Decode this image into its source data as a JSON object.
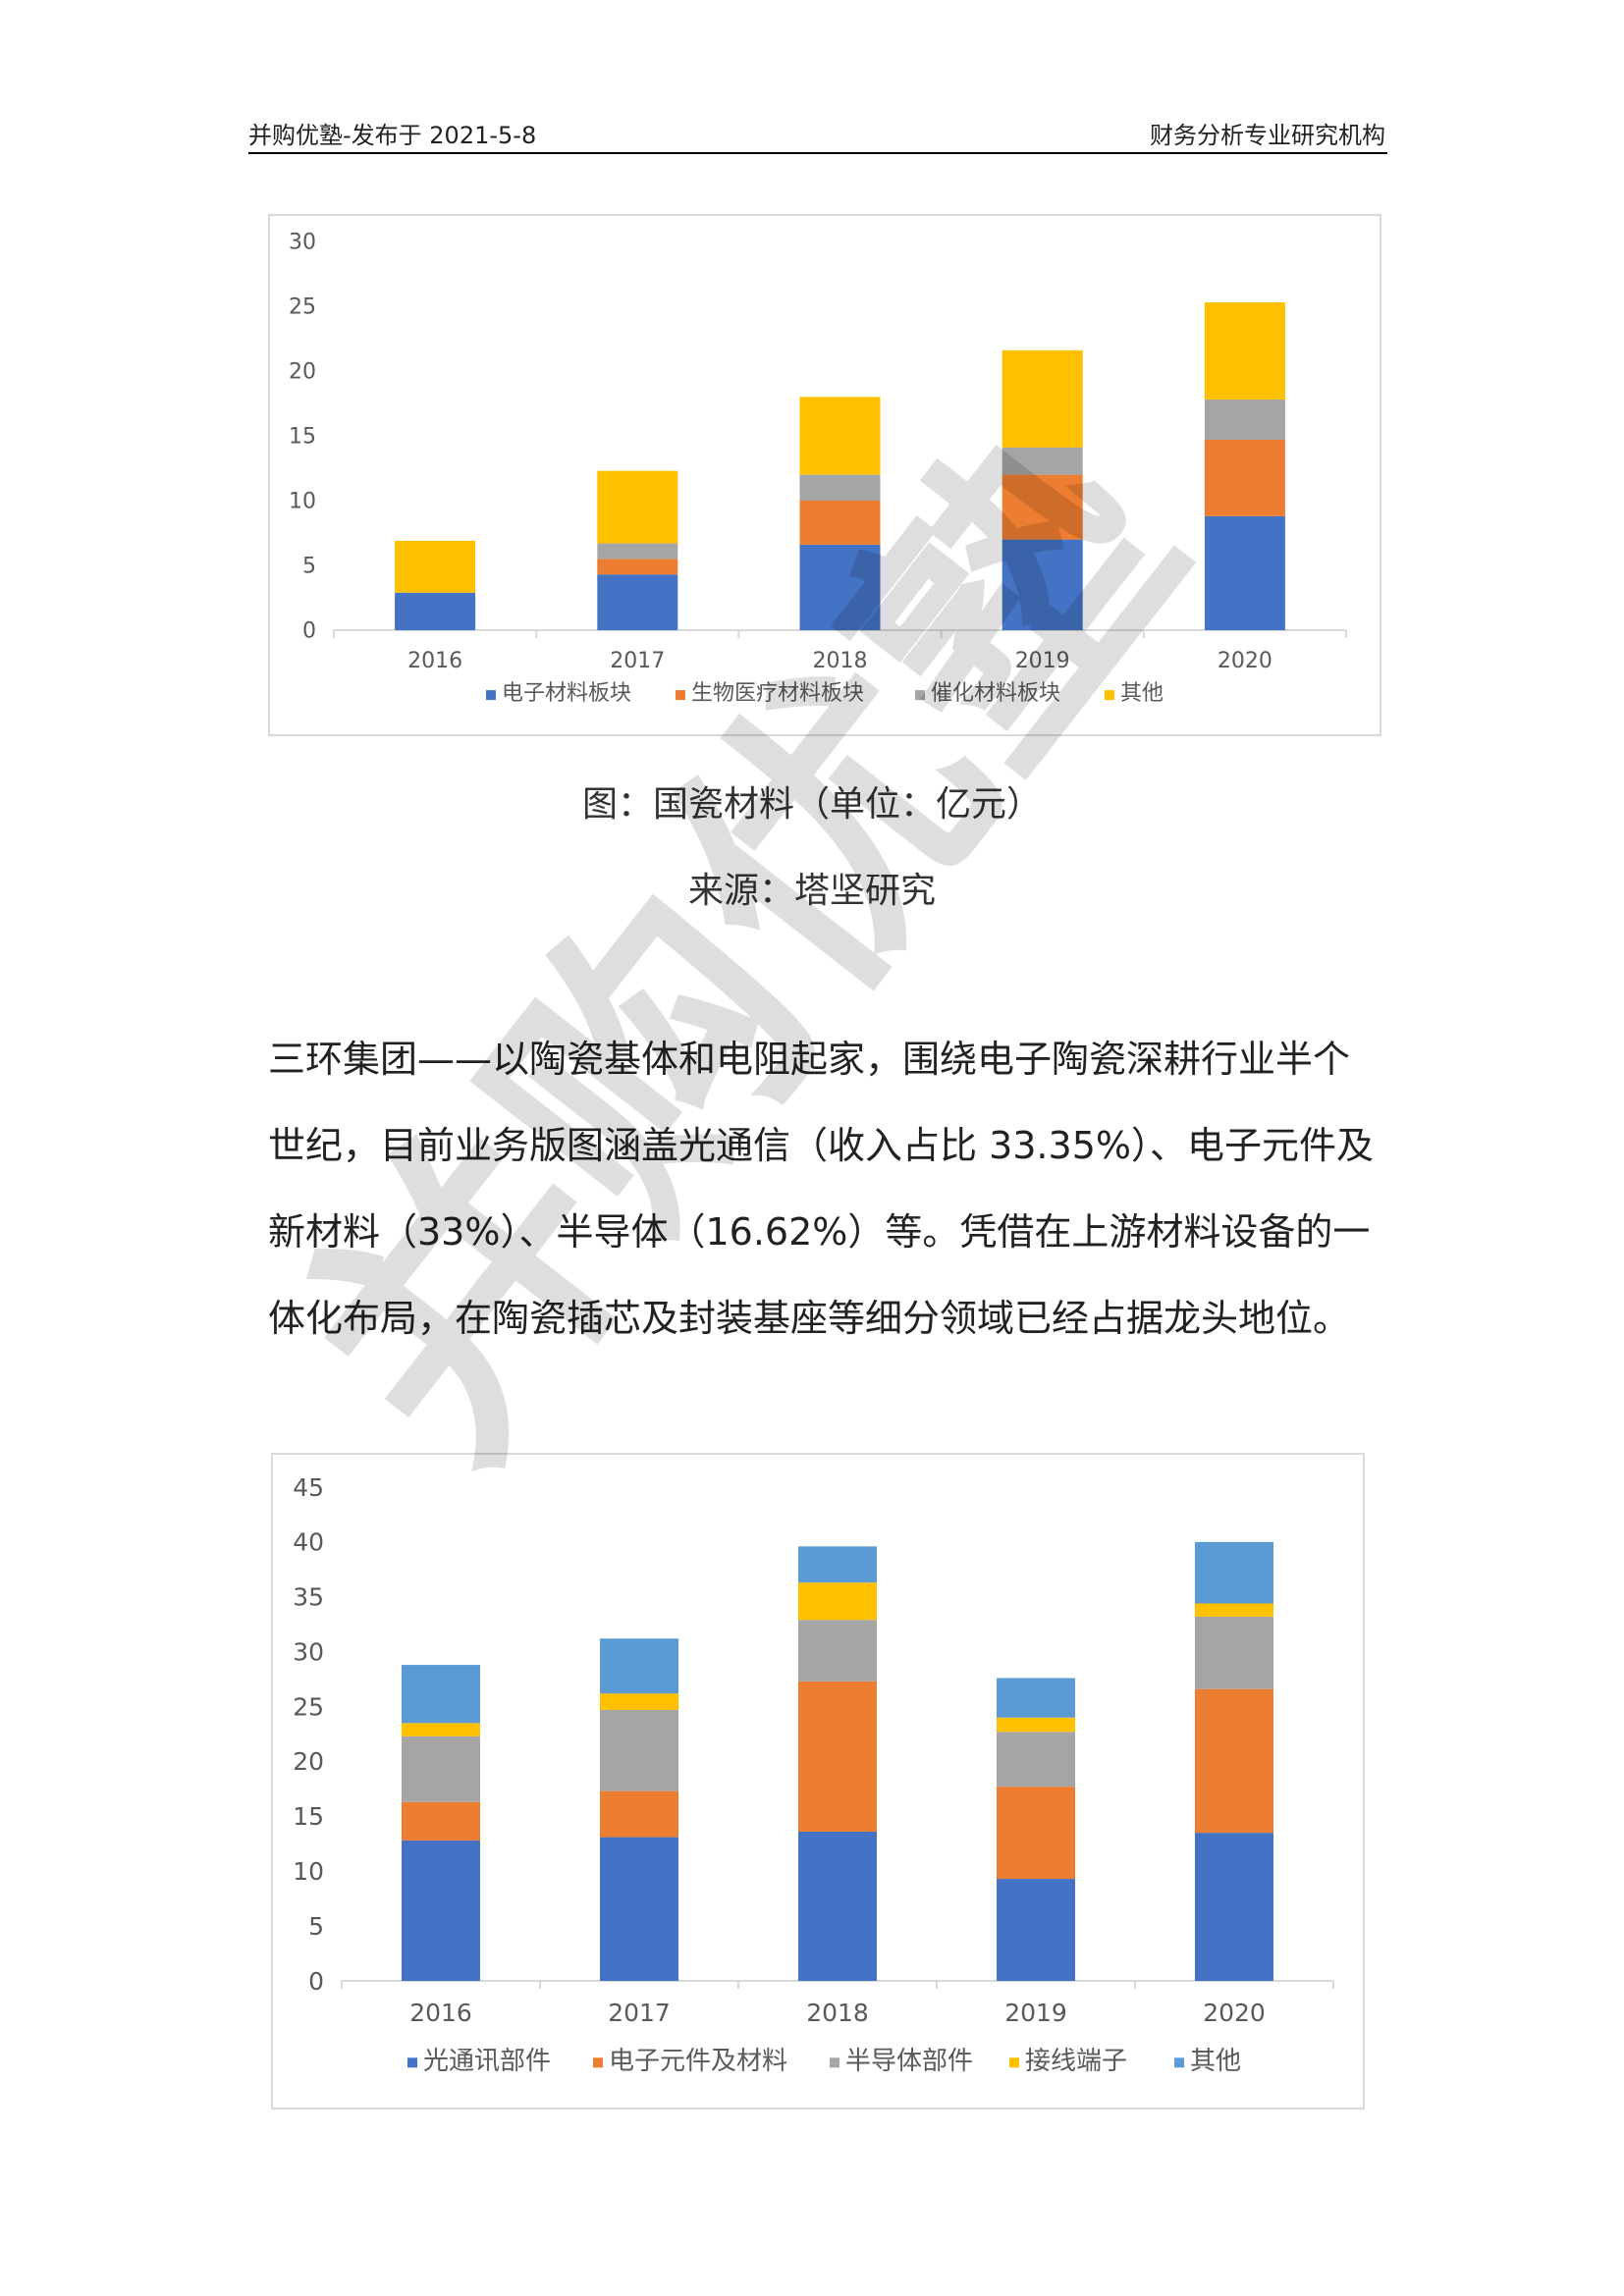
{
  "header": {
    "left": "并购优塾-发布于 2021-5-8",
    "right": "财务分析专业研究机构"
  },
  "figure1": {
    "caption": "图：国瓷材料（单位：亿元）",
    "source": "来源：塔坚研究"
  },
  "paragraph": {
    "text": "三环集团——以陶瓷基体和电阻起家，围绕电子陶瓷深耕行业半个世纪，目前业务版图涵盖光通信（收入占比 33.35%）、电子元件及新材料（33%）、半导体（16.62%）等。凭借在上游材料设备的一体化布局，在陶瓷插芯及封装基座等细分领域已经占据龙头地位。"
  },
  "watermark": {
    "text": "并购优塾"
  },
  "chart_data": [
    {
      "type": "bar",
      "stacked": true,
      "categories": [
        "2016",
        "2017",
        "2018",
        "2019",
        "2020"
      ],
      "series": [
        {
          "name": "电子材料板块",
          "color": "#4472c4",
          "values": [
            2.9,
            4.3,
            6.6,
            7.0,
            8.8
          ]
        },
        {
          "name": "生物医疗材料板块",
          "color": "#ed7d31",
          "values": [
            0,
            1.2,
            3.4,
            5.0,
            5.9
          ]
        },
        {
          "name": "催化材料板块",
          "color": "#a5a5a5",
          "values": [
            0,
            1.2,
            2.0,
            2.1,
            3.1
          ]
        },
        {
          "name": "其他",
          "color": "#ffc000",
          "values": [
            4.0,
            5.6,
            6.0,
            7.5,
            7.5
          ]
        }
      ],
      "ylim": [
        0,
        30
      ],
      "yticks": [
        0,
        5,
        10,
        15,
        20,
        25,
        30
      ],
      "grid": false,
      "legend": "bottom"
    },
    {
      "type": "bar",
      "stacked": true,
      "categories": [
        "2016",
        "2017",
        "2018",
        "2019",
        "2020"
      ],
      "series": [
        {
          "name": "光通讯部件",
          "color": "#4472c4",
          "values": [
            12.8,
            13.1,
            13.6,
            9.3,
            13.5
          ]
        },
        {
          "name": "电子元件及材料",
          "color": "#ed7d31",
          "values": [
            3.5,
            4.2,
            13.7,
            8.4,
            13.1
          ]
        },
        {
          "name": "半导体部件",
          "color": "#a5a5a5",
          "values": [
            6.0,
            7.4,
            5.6,
            5.0,
            6.6
          ]
        },
        {
          "name": "接线端子",
          "color": "#ffc000",
          "values": [
            1.2,
            1.5,
            3.4,
            1.3,
            1.2
          ]
        },
        {
          "name": "其他",
          "color": "#5b9bd5",
          "values": [
            5.3,
            5.0,
            3.3,
            3.6,
            5.6
          ]
        }
      ],
      "ylim": [
        0,
        45
      ],
      "yticks": [
        0,
        5,
        10,
        15,
        20,
        25,
        30,
        35,
        40,
        45
      ],
      "grid": false,
      "legend": "bottom"
    }
  ]
}
